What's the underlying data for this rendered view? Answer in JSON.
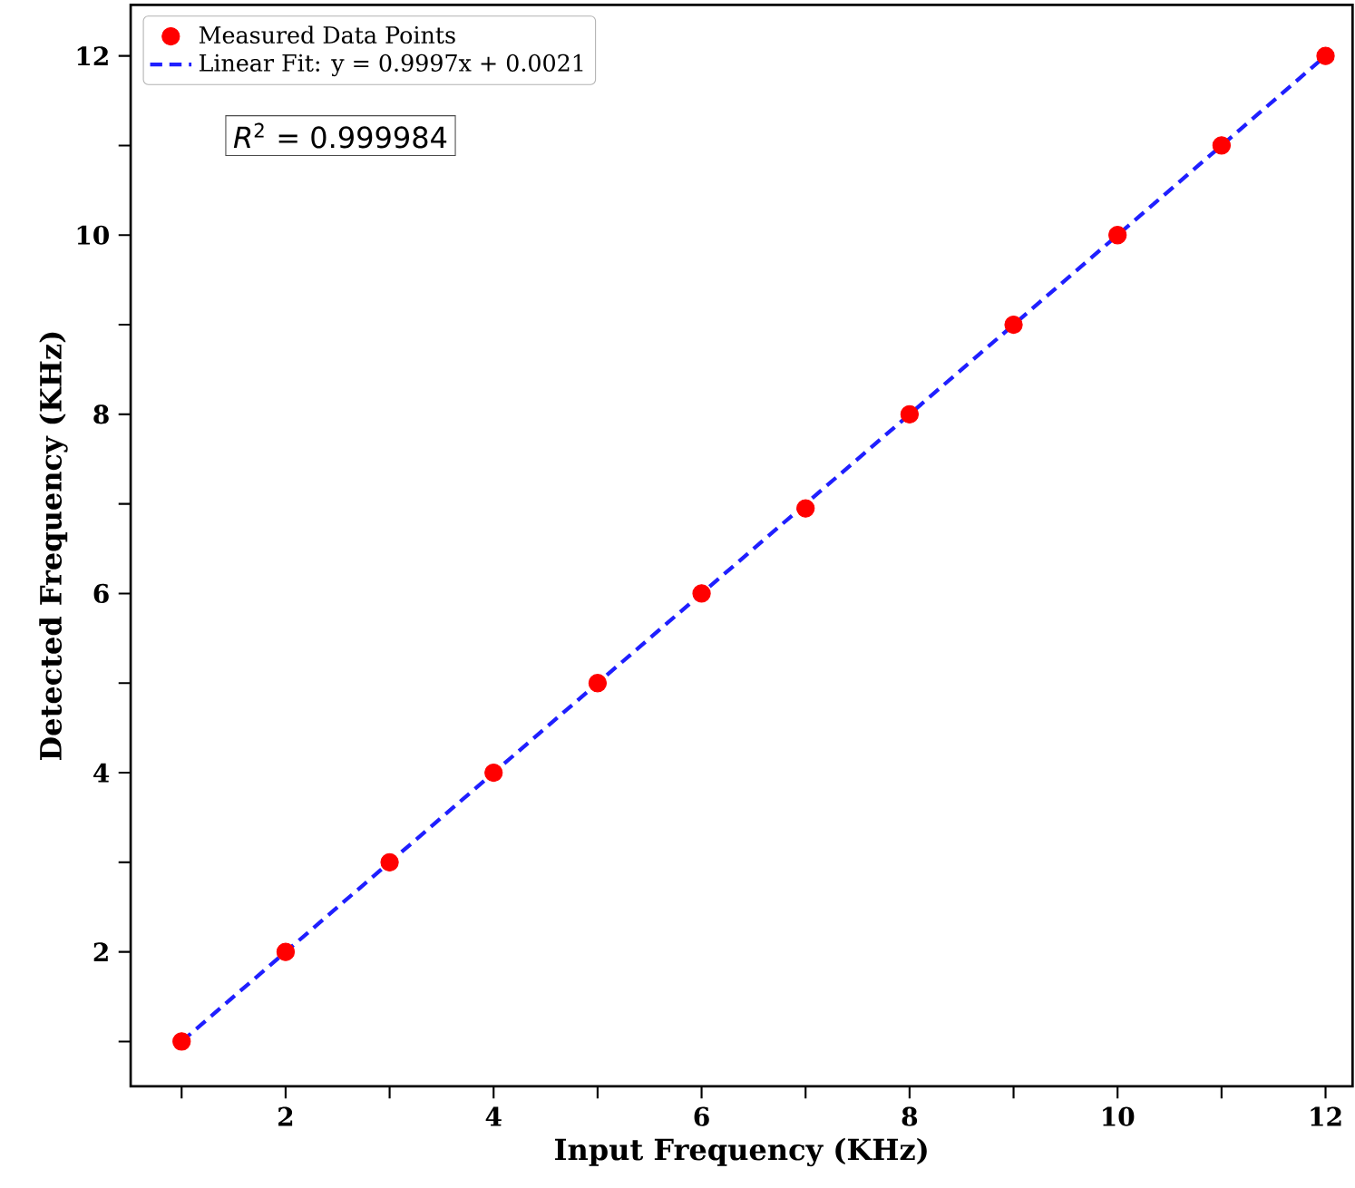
{
  "chart_data": {
    "type": "scatter",
    "xlabel": "Input Frequency (KHz)",
    "ylabel": "Detected Frequency (KHz)",
    "series": [
      {
        "name": "Measured Data Points",
        "marker": "circle",
        "color": "#ff0000",
        "x": [
          1,
          2,
          3,
          4,
          5,
          6,
          7,
          8,
          9,
          10,
          11,
          12
        ],
        "values": [
          1,
          2,
          3,
          4,
          5,
          6,
          6.95,
          8,
          9,
          10,
          11,
          12
        ]
      },
      {
        "name": "Linear Fit: y = 0.9997x + 0.0021",
        "type": "line",
        "marker": "none",
        "color": "#1f1fff",
        "line_style": "dashed",
        "x": [
          1,
          12
        ],
        "values": [
          1.0,
          12.0
        ]
      }
    ],
    "annotations": [
      "*R*$^{2}$ = 0.999984"
    ],
    "xlim": [
      0.51,
      12.26
    ],
    "ylim": [
      0.5,
      12.57
    ],
    "xticks": [
      {
        "value": 1,
        "label": null
      },
      2,
      {
        "value": 3,
        "label": null
      },
      4,
      {
        "value": 5,
        "label": null
      },
      6,
      {
        "value": 7,
        "label": null
      },
      8,
      {
        "value": 9,
        "label": null
      },
      10,
      {
        "value": 11,
        "label": null
      },
      12
    ],
    "yticks": [
      {
        "value": 1,
        "label": null
      },
      2,
      {
        "value": 3,
        "label": null
      },
      4,
      {
        "value": 5,
        "label": null
      },
      6,
      {
        "value": 7,
        "label": null
      },
      8,
      {
        "value": 9,
        "label": null
      },
      10,
      {
        "value": 11,
        "label": null
      },
      12
    ],
    "grid": false,
    "legend": "top left"
  }
}
